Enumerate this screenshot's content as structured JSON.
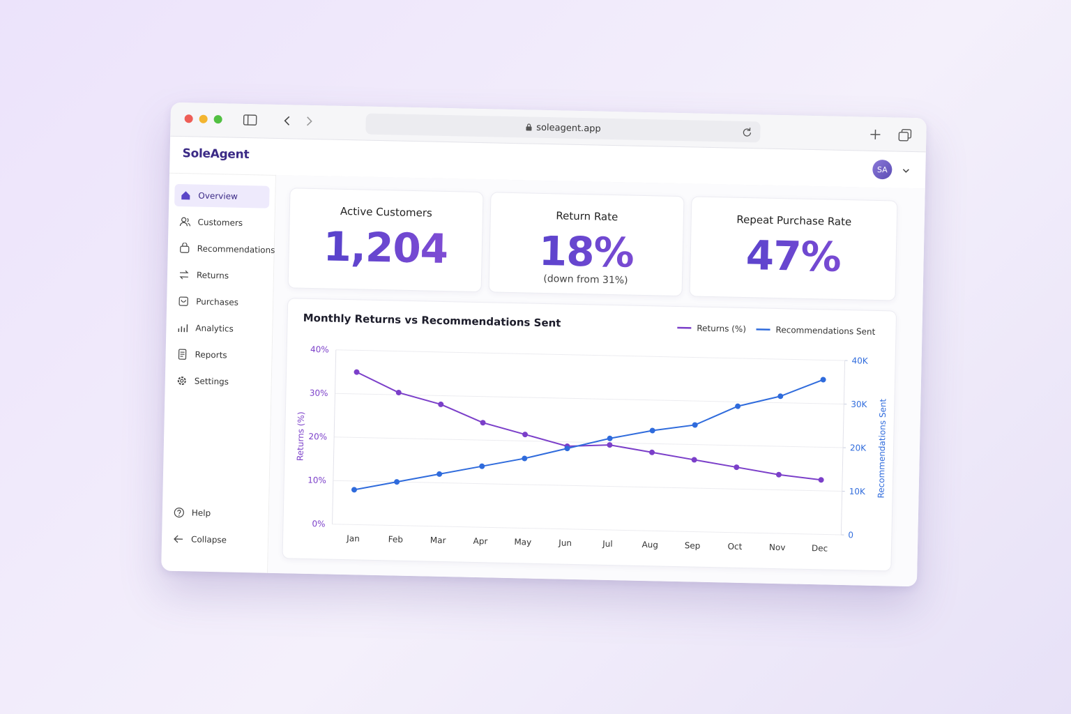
{
  "browser": {
    "url": "soleagent.app"
  },
  "header": {
    "logo": "SoleAgent",
    "avatar": "SA"
  },
  "sidebar": {
    "nav": [
      "Overview",
      "Customers",
      "Recommendations",
      "Returns",
      "Purchases",
      "Analytics",
      "Reports",
      "Settings"
    ],
    "footer": [
      "Help",
      "Collapse"
    ]
  },
  "kpis": [
    {
      "label": "Active Customers",
      "value": "1,204"
    },
    {
      "label": "Return Rate",
      "value": "18%",
      "note": "(down from 31%)"
    },
    {
      "label": "Repeat Purchase Rate",
      "value": "47%"
    }
  ],
  "chart_data": {
    "type": "line",
    "title": "Monthly Returns vs Recommendations Sent",
    "categories": [
      "Jan",
      "Feb",
      "Mar",
      "Apr",
      "May",
      "Jun",
      "Jul",
      "Aug",
      "Sep",
      "Oct",
      "Nov",
      "Dec"
    ],
    "y_label": "Returns (%)",
    "y2_label": "Recommendations Sent",
    "ylim": [
      0,
      40
    ],
    "yticks": [
      {
        "value": 0,
        "label": "0%"
      },
      {
        "value": 10,
        "label": "10%"
      },
      {
        "value": 20,
        "label": "20%"
      },
      {
        "value": 30,
        "label": "30%"
      },
      {
        "value": 40,
        "label": "40%"
      }
    ],
    "y2lim": [
      0,
      40000
    ],
    "y2ticks": [
      0,
      {
        "value": 10000,
        "label": "10K"
      },
      {
        "value": 20000,
        "label": "20K"
      },
      {
        "value": 30000,
        "label": "30K"
      },
      {
        "value": 40000,
        "label": "40K"
      }
    ],
    "grid": true,
    "legend": "top-right",
    "series": [
      {
        "name": "Returns (%)",
        "color": "#7b3fc9",
        "values": [
          35,
          30.5,
          28,
          24,
          21.5,
          19,
          19.5,
          18,
          16.5,
          15,
          13.5,
          12.5
        ]
      },
      {
        "name": "Recommendations Sent",
        "color": "#2f6bdc",
        "axis": "y2",
        "values": [
          8000,
          10000,
          12000,
          14000,
          16000,
          18500,
          21000,
          23000,
          24500,
          29000,
          31500,
          35500
        ]
      }
    ]
  }
}
